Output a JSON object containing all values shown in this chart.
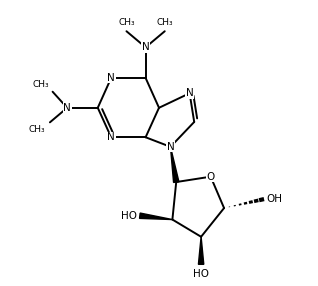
{
  "background_color": "#ffffff",
  "line_color": "#000000",
  "line_width": 1.4,
  "font_size": 7.5,
  "fig_width": 3.18,
  "fig_height": 2.86,
  "xlim": [
    -2.8,
    4.2
  ],
  "ylim": [
    -4.2,
    3.2
  ]
}
